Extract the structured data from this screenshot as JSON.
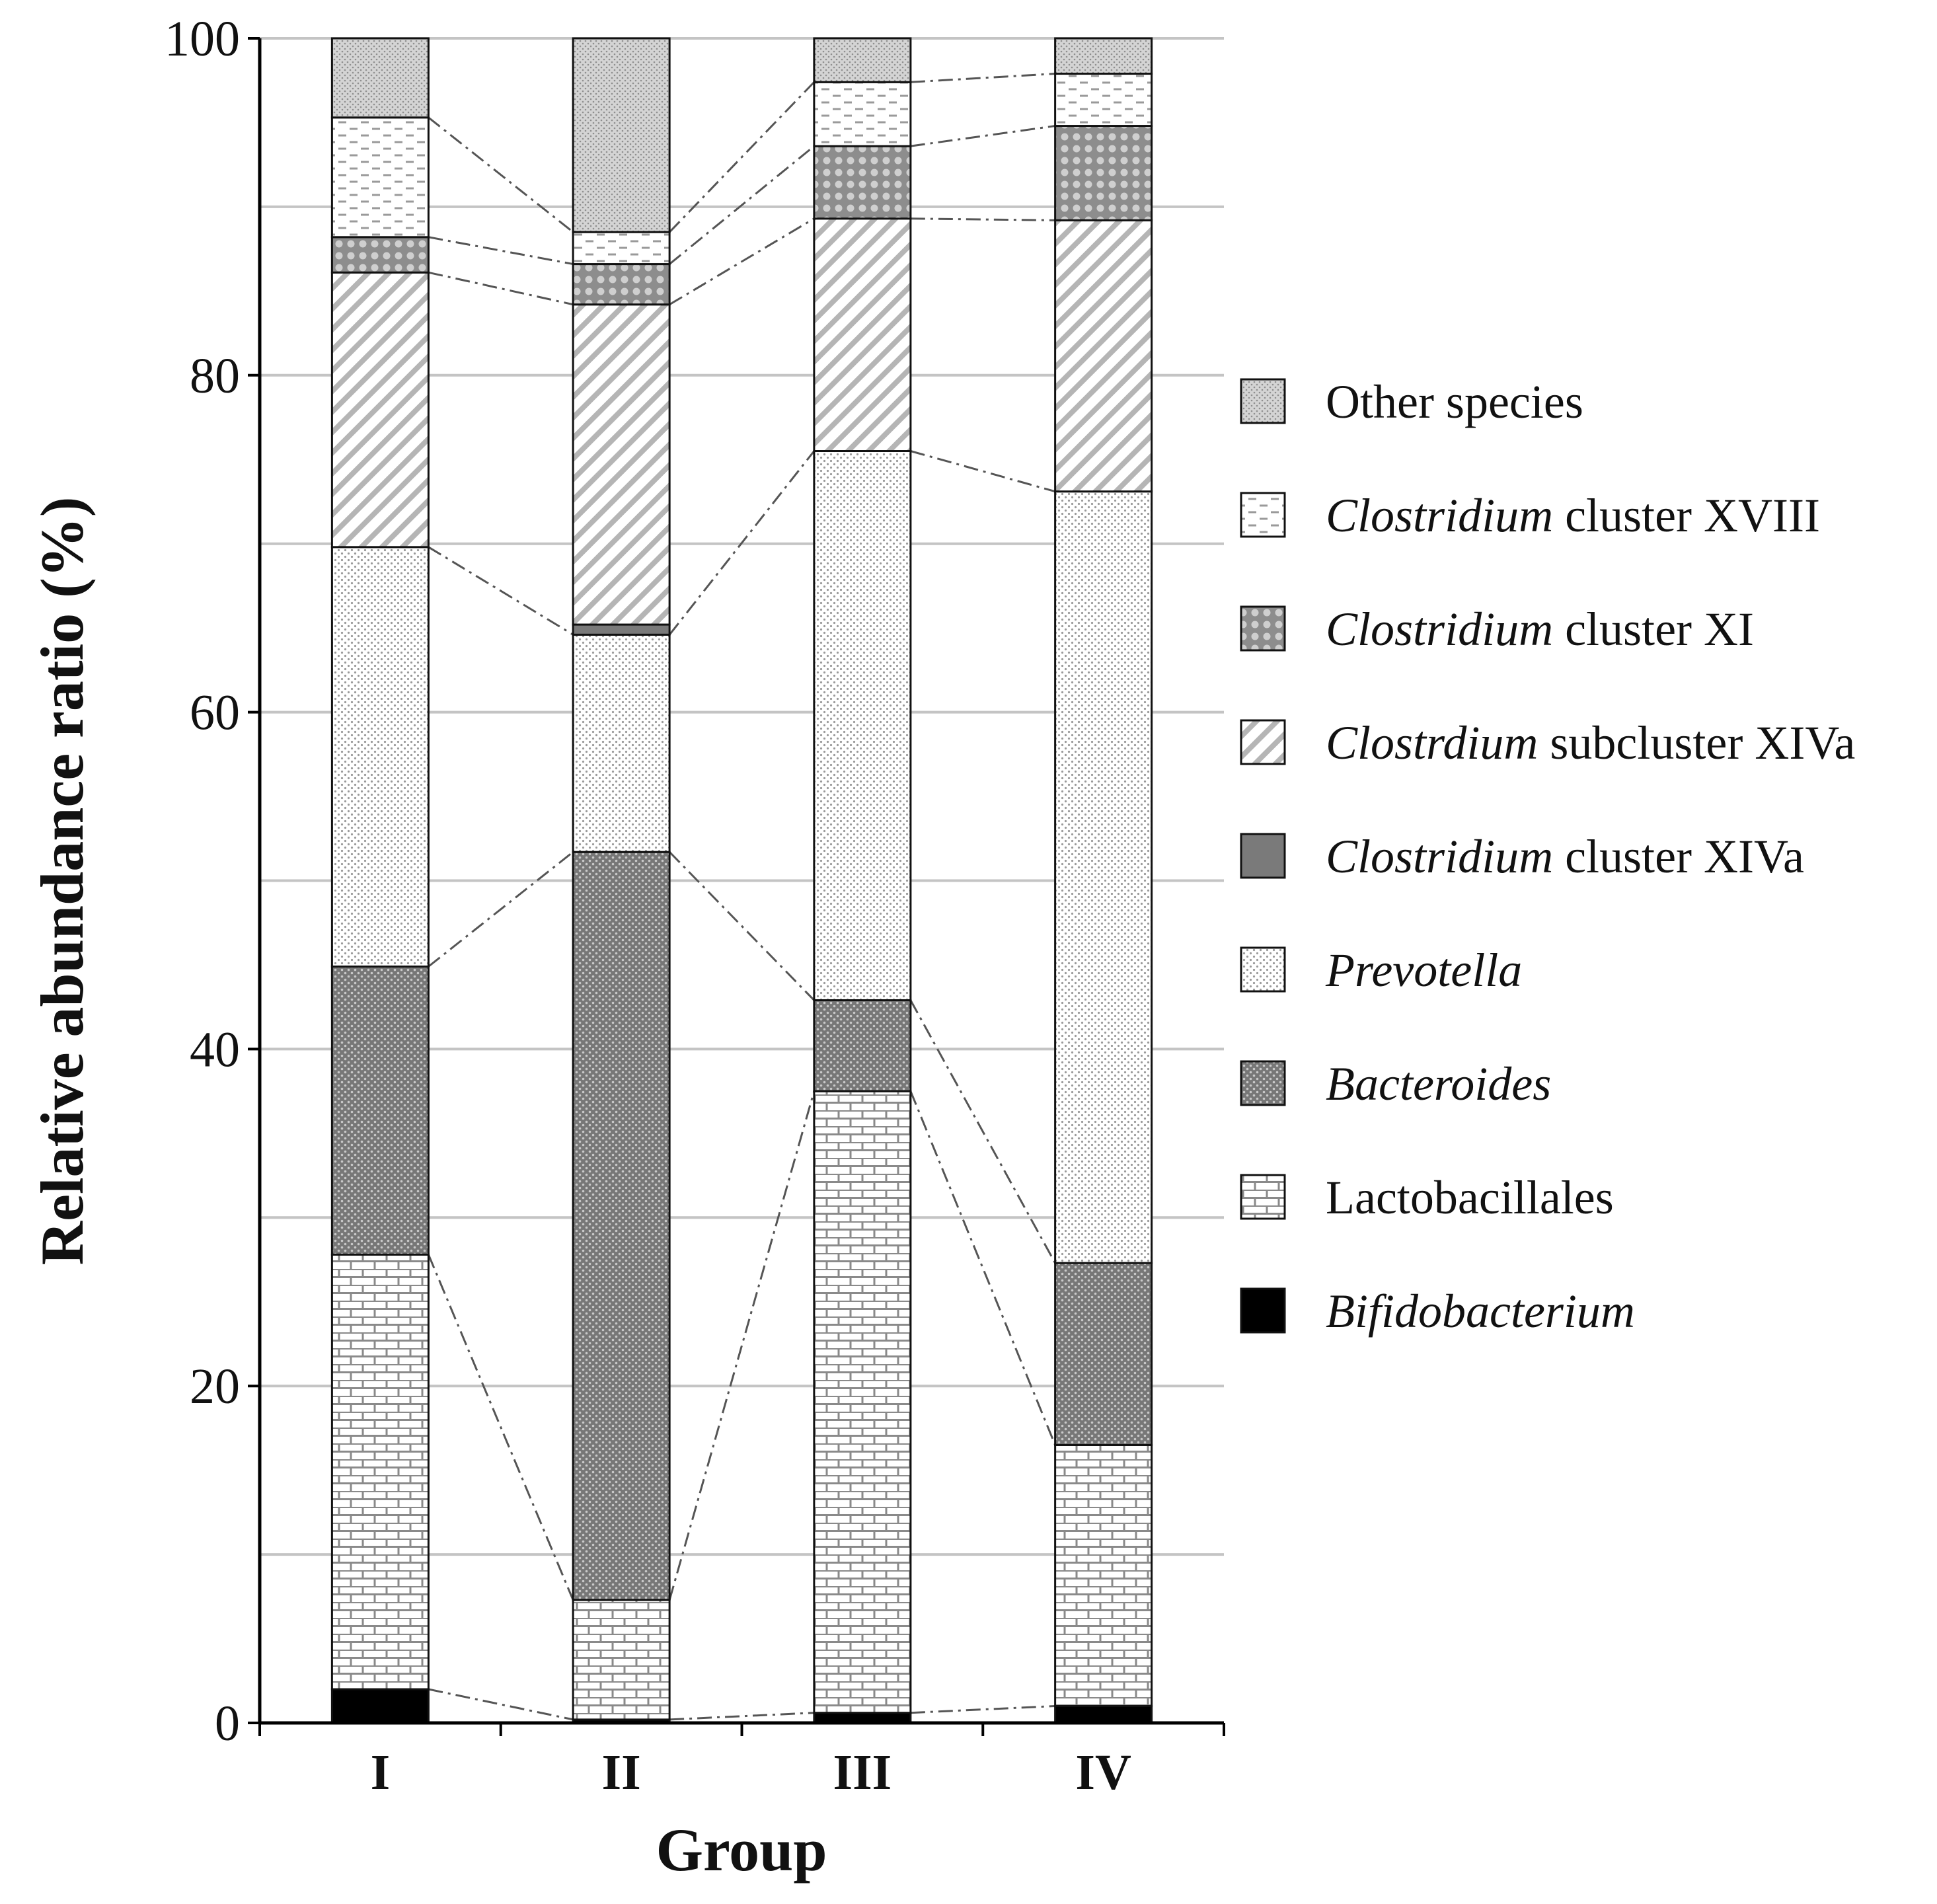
{
  "chart_data": {
    "type": "bar",
    "stacked": true,
    "title": "",
    "xlabel": "Group",
    "ylabel": "Relative abundance ratio (%)",
    "ylim": [
      0,
      100
    ],
    "yticks": [
      0,
      20,
      40,
      60,
      80,
      100
    ],
    "gridlines": [
      10,
      20,
      30,
      40,
      50,
      60,
      70,
      80,
      90,
      100
    ],
    "grid": true,
    "legend_position": "right",
    "categories": [
      "I",
      "II",
      "III",
      "IV"
    ],
    "series": [
      {
        "name": "Bifidobacterium",
        "italic_part": "Bifidobacterium",
        "rest": "",
        "pattern": "solid-black",
        "values": [
          2.0,
          0.2,
          0.6,
          1.0
        ]
      },
      {
        "name": "Lactobacillales",
        "italic_part": "",
        "rest": "Lactobacillales",
        "pattern": "brick",
        "values": [
          25.8,
          7.1,
          36.9,
          15.5
        ]
      },
      {
        "name": "Bacteroides",
        "italic_part": "Bacteroides",
        "rest": "",
        "pattern": "dark-dots",
        "values": [
          17.1,
          44.4,
          5.4,
          10.8
        ]
      },
      {
        "name": "Prevotella",
        "italic_part": "Prevotella",
        "rest": "",
        "pattern": "light-dots",
        "values": [
          24.9,
          12.9,
          32.6,
          45.8
        ]
      },
      {
        "name": "Clostridium cluster XIVa",
        "italic_part": "Clostridium",
        "rest": " cluster XIVa",
        "pattern": "solid-gray",
        "values": [
          0.0,
          0.6,
          0.0,
          0.0
        ]
      },
      {
        "name": "Clostrdium subcluster XIVa",
        "italic_part": "Clostrdium",
        "rest": " subcluster XIVa",
        "pattern": "diagonal",
        "values": [
          16.3,
          19.0,
          13.8,
          16.1
        ]
      },
      {
        "name": "Clostridium cluster XI",
        "italic_part": "Clostridium",
        "rest": " cluster XI",
        "pattern": "circles",
        "values": [
          2.1,
          2.4,
          4.3,
          5.6
        ]
      },
      {
        "name": "Clostridium cluster XVIII",
        "italic_part": "Clostridium",
        "rest": " cluster XVIII",
        "pattern": "dashes",
        "values": [
          7.1,
          1.9,
          3.8,
          3.1
        ]
      },
      {
        "name": "Other species",
        "italic_part": "",
        "rest": "Other species",
        "pattern": "cross-dots",
        "values": [
          4.7,
          11.5,
          2.6,
          2.1
        ]
      }
    ]
  },
  "legend_order": [
    8,
    7,
    6,
    5,
    4,
    3,
    2,
    1,
    0
  ]
}
